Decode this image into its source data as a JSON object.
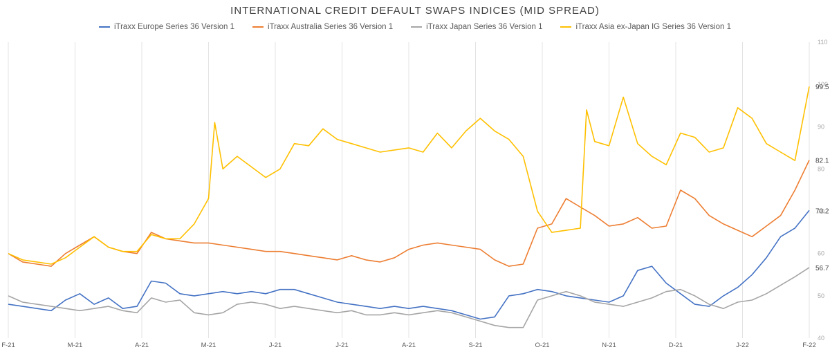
{
  "chart_data": {
    "type": "line",
    "title": "INTERNATIONAL CREDIT DEFAULT SWAPS INDICES (MID SPREAD)",
    "xlabel": "",
    "ylabel": "",
    "ylim": [
      40,
      110
    ],
    "y_ticks": [
      40,
      50,
      60,
      70,
      80,
      90,
      100,
      110
    ],
    "grid": "vertical",
    "legend": "top-center",
    "x_tick_labels": [
      "F-21",
      "M-21",
      "A-21",
      "M-21",
      "J-21",
      "J-21",
      "A-21",
      "S-21",
      "O-21",
      "N-21",
      "D-21",
      "J-22",
      "F-22"
    ],
    "x_start": "2021-02-01",
    "x_end": "2022-02-28",
    "series": [
      {
        "name": "iTraxx Europe Series 36 Version 1",
        "color": "#4472c4",
        "end_label": "70.2",
        "points": [
          [
            "2021-02-01",
            48.0
          ],
          [
            "2021-02-08",
            47.5
          ],
          [
            "2021-02-15",
            47.0
          ],
          [
            "2021-02-22",
            46.5
          ],
          [
            "2021-03-01",
            49.0
          ],
          [
            "2021-03-08",
            50.5
          ],
          [
            "2021-03-15",
            48.0
          ],
          [
            "2021-03-22",
            49.5
          ],
          [
            "2021-03-29",
            47.0
          ],
          [
            "2021-04-05",
            47.5
          ],
          [
            "2021-04-12",
            53.5
          ],
          [
            "2021-04-19",
            53.0
          ],
          [
            "2021-04-26",
            50.5
          ],
          [
            "2021-05-03",
            50.0
          ],
          [
            "2021-05-10",
            50.5
          ],
          [
            "2021-05-17",
            51.0
          ],
          [
            "2021-05-24",
            50.5
          ],
          [
            "2021-05-31",
            51.0
          ],
          [
            "2021-06-07",
            50.5
          ],
          [
            "2021-06-14",
            51.5
          ],
          [
            "2021-06-21",
            51.5
          ],
          [
            "2021-06-28",
            50.5
          ],
          [
            "2021-07-05",
            49.5
          ],
          [
            "2021-07-12",
            48.5
          ],
          [
            "2021-07-19",
            48.0
          ],
          [
            "2021-07-26",
            47.5
          ],
          [
            "2021-08-02",
            47.0
          ],
          [
            "2021-08-09",
            47.5
          ],
          [
            "2021-08-16",
            47.0
          ],
          [
            "2021-08-23",
            47.5
          ],
          [
            "2021-08-30",
            47.0
          ],
          [
            "2021-09-06",
            46.5
          ],
          [
            "2021-09-13",
            45.5
          ],
          [
            "2021-09-20",
            44.5
          ],
          [
            "2021-09-27",
            45.0
          ],
          [
            "2021-10-04",
            50.0
          ],
          [
            "2021-10-11",
            50.5
          ],
          [
            "2021-10-18",
            51.5
          ],
          [
            "2021-10-25",
            51.0
          ],
          [
            "2021-11-01",
            50.0
          ],
          [
            "2021-11-08",
            49.5
          ],
          [
            "2021-11-15",
            49.0
          ],
          [
            "2021-11-22",
            48.5
          ],
          [
            "2021-11-29",
            50.0
          ],
          [
            "2021-12-06",
            56.0
          ],
          [
            "2021-12-13",
            57.0
          ],
          [
            "2021-12-20",
            53.0
          ],
          [
            "2021-12-27",
            50.5
          ],
          [
            "2022-01-03",
            48.0
          ],
          [
            "2022-01-10",
            47.5
          ],
          [
            "2022-01-17",
            50.0
          ],
          [
            "2022-01-24",
            52.0
          ],
          [
            "2022-01-31",
            55.0
          ],
          [
            "2022-02-07",
            59.0
          ],
          [
            "2022-02-14",
            64.0
          ],
          [
            "2022-02-21",
            66.0
          ],
          [
            "2022-02-28",
            70.2
          ]
        ]
      },
      {
        "name": "iTraxx Australia Series 36 Version 1",
        "color": "#ed7d31",
        "end_label": "82.1",
        "points": [
          [
            "2021-02-01",
            60.0
          ],
          [
            "2021-02-08",
            58.0
          ],
          [
            "2021-02-15",
            57.5
          ],
          [
            "2021-02-22",
            57.0
          ],
          [
            "2021-03-01",
            60.0
          ],
          [
            "2021-03-08",
            62.0
          ],
          [
            "2021-03-15",
            64.0
          ],
          [
            "2021-03-22",
            61.5
          ],
          [
            "2021-03-29",
            60.5
          ],
          [
            "2021-04-05",
            60.0
          ],
          [
            "2021-04-12",
            65.0
          ],
          [
            "2021-04-19",
            63.5
          ],
          [
            "2021-04-26",
            63.0
          ],
          [
            "2021-05-03",
            62.5
          ],
          [
            "2021-05-10",
            62.5
          ],
          [
            "2021-05-17",
            62.0
          ],
          [
            "2021-05-24",
            61.5
          ],
          [
            "2021-05-31",
            61.0
          ],
          [
            "2021-06-07",
            60.5
          ],
          [
            "2021-06-14",
            60.5
          ],
          [
            "2021-06-21",
            60.0
          ],
          [
            "2021-06-28",
            59.5
          ],
          [
            "2021-07-05",
            59.0
          ],
          [
            "2021-07-12",
            58.5
          ],
          [
            "2021-07-19",
            59.5
          ],
          [
            "2021-07-26",
            58.5
          ],
          [
            "2021-08-02",
            58.0
          ],
          [
            "2021-08-09",
            59.0
          ],
          [
            "2021-08-16",
            61.0
          ],
          [
            "2021-08-23",
            62.0
          ],
          [
            "2021-08-30",
            62.5
          ],
          [
            "2021-09-06",
            62.0
          ],
          [
            "2021-09-13",
            61.5
          ],
          [
            "2021-09-20",
            61.0
          ],
          [
            "2021-09-27",
            58.5
          ],
          [
            "2021-10-04",
            57.0
          ],
          [
            "2021-10-11",
            57.5
          ],
          [
            "2021-10-18",
            66.0
          ],
          [
            "2021-10-25",
            67.0
          ],
          [
            "2021-11-01",
            73.0
          ],
          [
            "2021-11-08",
            71.0
          ],
          [
            "2021-11-15",
            69.0
          ],
          [
            "2021-11-22",
            66.5
          ],
          [
            "2021-11-29",
            67.0
          ],
          [
            "2021-12-06",
            68.5
          ],
          [
            "2021-12-13",
            66.0
          ],
          [
            "2021-12-20",
            66.5
          ],
          [
            "2021-12-27",
            75.0
          ],
          [
            "2022-01-03",
            73.0
          ],
          [
            "2022-01-10",
            69.0
          ],
          [
            "2022-01-17",
            67.0
          ],
          [
            "2022-01-24",
            65.5
          ],
          [
            "2022-01-31",
            64.0
          ],
          [
            "2022-02-07",
            66.5
          ],
          [
            "2022-02-14",
            69.0
          ],
          [
            "2022-02-21",
            75.0
          ],
          [
            "2022-02-28",
            82.1
          ]
        ]
      },
      {
        "name": "iTraxx Japan Series 36 Version 1",
        "color": "#a5a5a5",
        "end_label": "56.7",
        "points": [
          [
            "2021-02-01",
            50.0
          ],
          [
            "2021-02-08",
            48.5
          ],
          [
            "2021-02-15",
            48.0
          ],
          [
            "2021-02-22",
            47.5
          ],
          [
            "2021-03-01",
            47.0
          ],
          [
            "2021-03-08",
            46.5
          ],
          [
            "2021-03-15",
            47.0
          ],
          [
            "2021-03-22",
            47.5
          ],
          [
            "2021-03-29",
            46.5
          ],
          [
            "2021-04-05",
            46.0
          ],
          [
            "2021-04-12",
            49.5
          ],
          [
            "2021-04-19",
            48.5
          ],
          [
            "2021-04-26",
            49.0
          ],
          [
            "2021-05-03",
            46.0
          ],
          [
            "2021-05-10",
            45.5
          ],
          [
            "2021-05-17",
            46.0
          ],
          [
            "2021-05-24",
            48.0
          ],
          [
            "2021-05-31",
            48.5
          ],
          [
            "2021-06-07",
            48.0
          ],
          [
            "2021-06-14",
            47.0
          ],
          [
            "2021-06-21",
            47.5
          ],
          [
            "2021-06-28",
            47.0
          ],
          [
            "2021-07-05",
            46.5
          ],
          [
            "2021-07-12",
            46.0
          ],
          [
            "2021-07-19",
            46.5
          ],
          [
            "2021-07-26",
            45.5
          ],
          [
            "2021-08-02",
            45.5
          ],
          [
            "2021-08-09",
            46.0
          ],
          [
            "2021-08-16",
            45.5
          ],
          [
            "2021-08-23",
            46.0
          ],
          [
            "2021-08-30",
            46.5
          ],
          [
            "2021-09-06",
            46.0
          ],
          [
            "2021-09-13",
            45.0
          ],
          [
            "2021-09-20",
            44.0
          ],
          [
            "2021-09-27",
            43.0
          ],
          [
            "2021-10-04",
            42.5
          ],
          [
            "2021-10-11",
            42.5
          ],
          [
            "2021-10-18",
            49.0
          ],
          [
            "2021-10-25",
            50.0
          ],
          [
            "2021-11-01",
            51.0
          ],
          [
            "2021-11-08",
            50.0
          ],
          [
            "2021-11-15",
            48.5
          ],
          [
            "2021-11-22",
            48.0
          ],
          [
            "2021-11-29",
            47.5
          ],
          [
            "2021-12-06",
            48.5
          ],
          [
            "2021-12-13",
            49.5
          ],
          [
            "2021-12-20",
            51.0
          ],
          [
            "2021-12-27",
            51.5
          ],
          [
            "2022-01-03",
            50.0
          ],
          [
            "2022-01-10",
            48.0
          ],
          [
            "2022-01-17",
            47.0
          ],
          [
            "2022-01-24",
            48.5
          ],
          [
            "2022-01-31",
            49.0
          ],
          [
            "2022-02-07",
            50.5
          ],
          [
            "2022-02-14",
            52.5
          ],
          [
            "2022-02-21",
            54.5
          ],
          [
            "2022-02-28",
            56.7
          ]
        ]
      },
      {
        "name": "iTraxx Asia ex-Japan IG Series 36 Version 1",
        "color": "#ffc000",
        "end_label": "99.5",
        "points": [
          [
            "2021-02-01",
            60.0
          ],
          [
            "2021-02-08",
            58.5
          ],
          [
            "2021-02-15",
            58.0
          ],
          [
            "2021-02-22",
            57.5
          ],
          [
            "2021-03-01",
            59.0
          ],
          [
            "2021-03-08",
            61.5
          ],
          [
            "2021-03-15",
            64.0
          ],
          [
            "2021-03-22",
            61.5
          ],
          [
            "2021-03-29",
            60.5
          ],
          [
            "2021-04-05",
            60.5
          ],
          [
            "2021-04-12",
            64.5
          ],
          [
            "2021-04-19",
            63.5
          ],
          [
            "2021-04-26",
            63.5
          ],
          [
            "2021-05-03",
            67.0
          ],
          [
            "2021-05-10",
            73.0
          ],
          [
            "2021-05-13",
            91.0
          ],
          [
            "2021-05-17",
            80.0
          ],
          [
            "2021-05-24",
            83.0
          ],
          [
            "2021-05-31",
            80.5
          ],
          [
            "2021-06-07",
            78.0
          ],
          [
            "2021-06-14",
            80.0
          ],
          [
            "2021-06-21",
            86.0
          ],
          [
            "2021-06-28",
            85.5
          ],
          [
            "2021-07-05",
            89.5
          ],
          [
            "2021-07-12",
            87.0
          ],
          [
            "2021-07-19",
            86.0
          ],
          [
            "2021-07-26",
            85.0
          ],
          [
            "2021-08-02",
            84.0
          ],
          [
            "2021-08-09",
            84.5
          ],
          [
            "2021-08-16",
            85.0
          ],
          [
            "2021-08-23",
            84.0
          ],
          [
            "2021-08-30",
            88.5
          ],
          [
            "2021-09-06",
            85.0
          ],
          [
            "2021-09-13",
            89.0
          ],
          [
            "2021-09-20",
            92.0
          ],
          [
            "2021-09-27",
            89.0
          ],
          [
            "2021-10-04",
            87.0
          ],
          [
            "2021-10-11",
            83.0
          ],
          [
            "2021-10-18",
            70.0
          ],
          [
            "2021-10-25",
            65.0
          ],
          [
            "2021-11-01",
            65.5
          ],
          [
            "2021-11-08",
            66.0
          ],
          [
            "2021-11-11",
            94.0
          ],
          [
            "2021-11-15",
            86.5
          ],
          [
            "2021-11-22",
            85.5
          ],
          [
            "2021-11-29",
            97.0
          ],
          [
            "2021-12-06",
            86.0
          ],
          [
            "2021-12-13",
            83.0
          ],
          [
            "2021-12-20",
            81.0
          ],
          [
            "2021-12-27",
            88.5
          ],
          [
            "2022-01-03",
            87.5
          ],
          [
            "2022-01-10",
            84.0
          ],
          [
            "2022-01-17",
            85.0
          ],
          [
            "2022-01-24",
            94.5
          ],
          [
            "2022-01-31",
            92.0
          ],
          [
            "2022-02-07",
            86.0
          ],
          [
            "2022-02-14",
            84.0
          ],
          [
            "2022-02-21",
            82.0
          ],
          [
            "2022-02-28",
            99.5
          ]
        ]
      }
    ]
  }
}
